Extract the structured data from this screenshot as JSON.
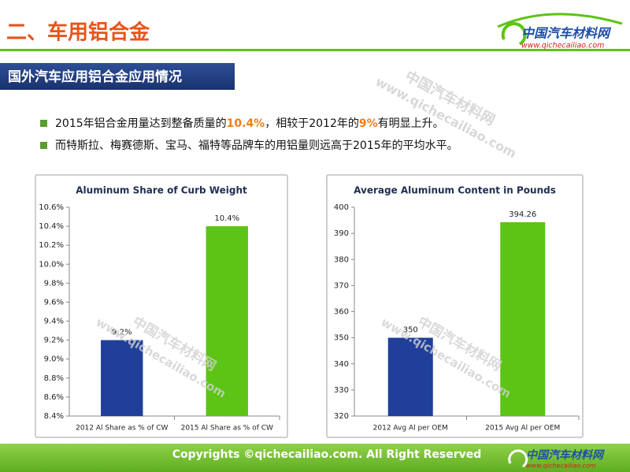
{
  "header": {
    "title": "二、车用铝合金",
    "logo": "中国汽车材料网",
    "logo_url": "www.qichecailiao.com"
  },
  "section_title": "国外汽车应用铝合金应用情况",
  "bullets": [
    [
      "2015年铝合金用量达到整备质量的",
      "10.4%",
      "，相较于2012年的",
      "9%",
      "有明显上升。"
    ],
    [
      "而特斯拉、梅赛德斯、宝马、福特等品牌车的用铝量则远高于2015年的平均水平。"
    ]
  ],
  "watermark": {
    "name": "中国汽车材料网",
    "url": "www.qichecailiao.com"
  },
  "footer": "Copyrights ©qichecailiao.com. All Right Reserved",
  "chart_data": [
    {
      "type": "bar",
      "title": "Aluminum Share of Curb Weight",
      "categories": [
        "2012 Al Share as % of CW",
        "2015 Al Share as % of CW"
      ],
      "values": [
        9.2,
        10.4
      ],
      "value_labels": [
        "9.2%",
        "10.4%"
      ],
      "colors": [
        "#1f3f9a",
        "#5cc415"
      ],
      "ylim": [
        8.4,
        10.6
      ],
      "yticks": [
        {
          "value": 8.4,
          "label": "8.4%"
        },
        {
          "value": 8.6,
          "label": "8.6%"
        },
        {
          "value": 8.8,
          "label": "8.8%"
        },
        {
          "value": 9.0,
          "label": "9.0%"
        },
        {
          "value": 9.2,
          "label": "9.2%"
        },
        {
          "value": 9.4,
          "label": "9.4%"
        },
        {
          "value": 9.6,
          "label": "9.6%"
        },
        {
          "value": 9.8,
          "label": "9.8%"
        },
        {
          "value": 10.0,
          "label": "10.0%"
        },
        {
          "value": 10.2,
          "label": "10.2%"
        },
        {
          "value": 10.4,
          "label": "10.4%"
        },
        {
          "value": 10.6,
          "label": "10.6%"
        }
      ],
      "grid": false
    },
    {
      "type": "bar",
      "title": "Average Aluminum Content in Pounds",
      "categories": [
        "2012 Avg Al per OEM",
        "2015 Avg Al per OEM"
      ],
      "values": [
        350,
        394.26
      ],
      "colors": [
        "#1f3f9a",
        "#5cc415"
      ],
      "ylim": [
        320,
        400
      ],
      "yticks": [
        320,
        330,
        340,
        350,
        360,
        370,
        380,
        390,
        400
      ],
      "grid": false
    }
  ]
}
